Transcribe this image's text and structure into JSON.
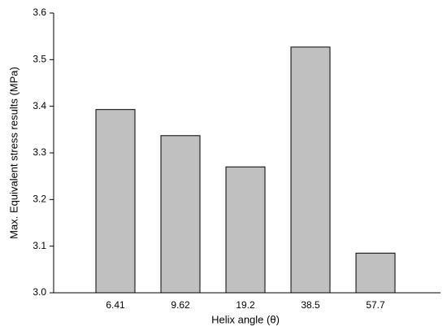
{
  "chart_data": {
    "type": "bar",
    "xlabel": "Helix angle (θ)",
    "ylabel": "Max. Equivalent stress results (MPa)",
    "categories": [
      "6.41",
      "9.62",
      "19.2",
      "38.5",
      "57.7"
    ],
    "values": [
      3.393,
      3.337,
      3.27,
      3.527,
      3.085
    ],
    "color": "#c0c0c0",
    "ylim": [
      3.0,
      3.6
    ],
    "yticks": [
      {
        "value": 3.0,
        "label": "3.0"
      },
      3.1,
      3.2,
      3.3,
      3.4,
      3.5,
      3.6
    ],
    "grid": false
  }
}
